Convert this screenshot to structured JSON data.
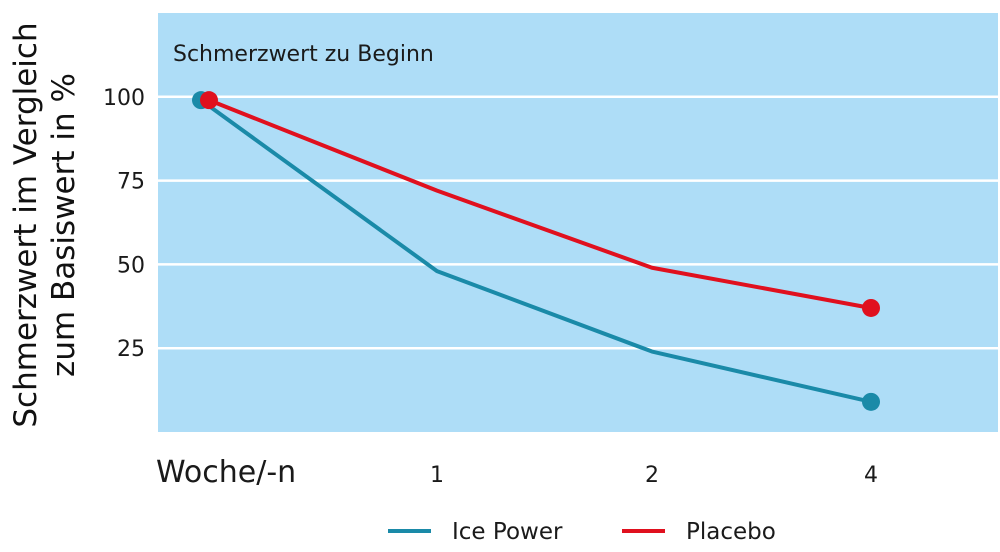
{
  "chart_data": {
    "type": "line",
    "ylabel_lines": [
      "Schmerzwert im Vergleich",
      "zum Basiswert in %"
    ],
    "xlabel": "Woche/-n",
    "annotation": "Schmerzwert zu Beginn",
    "x_categories": [
      "",
      "1",
      "2",
      "4"
    ],
    "ylim": [
      0,
      125
    ],
    "yticks": [
      {
        "value": 100,
        "label": "100"
      },
      {
        "value": 75,
        "label": "75"
      },
      {
        "value": 50,
        "label": "50"
      },
      {
        "value": 25,
        "label": "25"
      }
    ],
    "grid": true,
    "legend_position": "bottom",
    "series": [
      {
        "name": "Ice Power",
        "color": "#1a8aa8",
        "values": [
          99,
          48,
          24,
          9
        ],
        "markers": [
          0,
          3
        ]
      },
      {
        "name": "Placebo",
        "color": "#e0101e",
        "values": [
          99,
          72,
          49,
          37
        ],
        "markers": [
          0,
          3
        ]
      }
    ],
    "plot_background": "#aeddf7",
    "grid_color": "#ffffff"
  }
}
